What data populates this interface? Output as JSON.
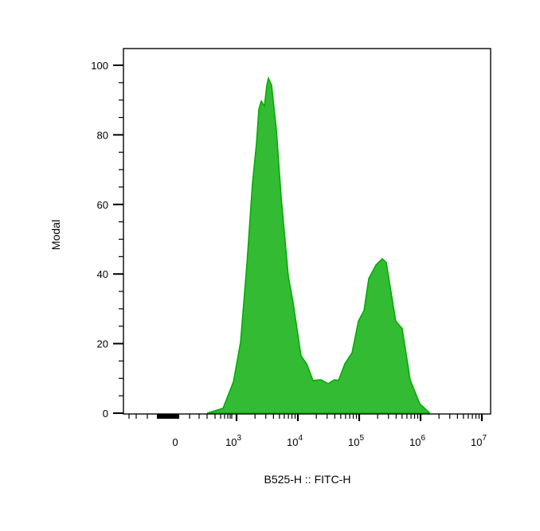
{
  "chart_data": {
    "type": "area",
    "title": "",
    "xlabel": "B525-H :: FITC-H",
    "ylabel": "Modal",
    "x_scale": "biexponential",
    "ylim": [
      0,
      100
    ],
    "y_ticks": [
      0,
      20,
      40,
      60,
      80,
      100
    ],
    "x_ticks": [
      {
        "value": 0,
        "base": "0",
        "exp": ""
      },
      {
        "value": 1000,
        "base": "10",
        "exp": "3"
      },
      {
        "value": 10000,
        "base": "10",
        "exp": "4"
      },
      {
        "value": 100000,
        "base": "10",
        "exp": "5"
      },
      {
        "value": 1000000,
        "base": "10",
        "exp": "6"
      },
      {
        "value": 10000000,
        "base": "10",
        "exp": "7"
      }
    ],
    "grid": false,
    "fill_color": "#33bb33",
    "line_color": "#00aa00",
    "x": [
      520,
      779,
      948,
      1160,
      1480,
      1820,
      2110,
      2310,
      2530,
      2850,
      3120,
      3310,
      3730,
      4460,
      5340,
      6980,
      8350,
      11270,
      13900,
      17660,
      23800,
      31200,
      39500,
      45900,
      58300,
      76400,
      97000,
      119700,
      143200,
      187500,
      238000,
      276700,
      395000,
      502000,
      678000,
      970000,
      1432000
    ],
    "y": [
      0,
      1.4,
      9,
      20.4,
      43.2,
      66.1,
      77.6,
      87.4,
      89.7,
      88.3,
      94.3,
      96.3,
      94.3,
      81.5,
      62.2,
      39.4,
      31.8,
      16.5,
      14.2,
      9.4,
      9.6,
      8.5,
      9.6,
      9.4,
      14.2,
      17.4,
      26.5,
      29.5,
      38.7,
      42.6,
      44.4,
      43.3,
      26.5,
      24.3,
      9.6,
      2.7,
      0
    ]
  }
}
